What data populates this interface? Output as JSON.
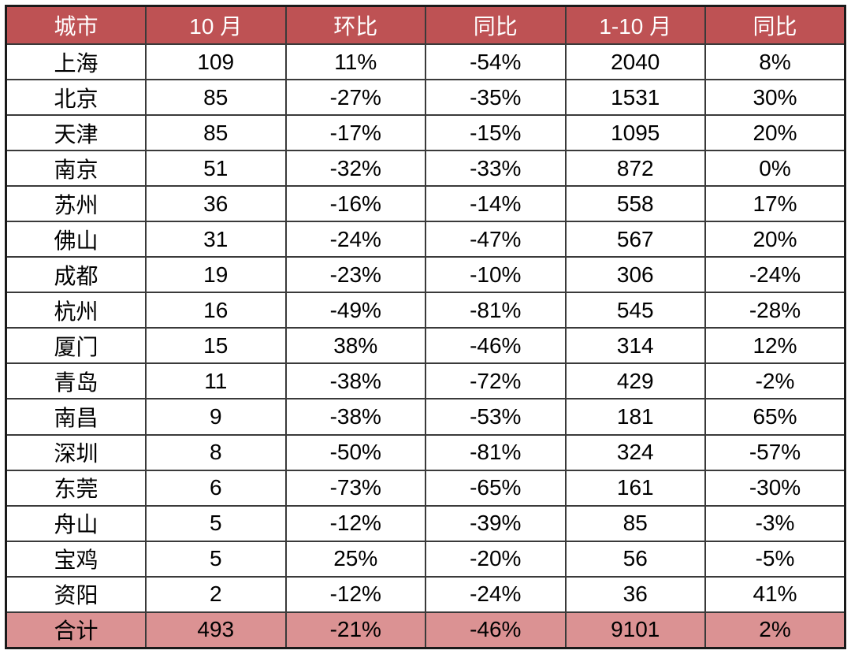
{
  "table": {
    "columns": [
      "城市",
      "10 月",
      "环比",
      "同比",
      "1-10 月",
      "同比"
    ],
    "rows": [
      [
        "上海",
        "109",
        "11%",
        "-54%",
        "2040",
        "8%"
      ],
      [
        "北京",
        "85",
        "-27%",
        "-35%",
        "1531",
        "30%"
      ],
      [
        "天津",
        "85",
        "-17%",
        "-15%",
        "1095",
        "20%"
      ],
      [
        "南京",
        "51",
        "-32%",
        "-33%",
        "872",
        "0%"
      ],
      [
        "苏州",
        "36",
        "-16%",
        "-14%",
        "558",
        "17%"
      ],
      [
        "佛山",
        "31",
        "-24%",
        "-47%",
        "567",
        "20%"
      ],
      [
        "成都",
        "19",
        "-23%",
        "-10%",
        "306",
        "-24%"
      ],
      [
        "杭州",
        "16",
        "-49%",
        "-81%",
        "545",
        "-28%"
      ],
      [
        "厦门",
        "15",
        "38%",
        "-46%",
        "314",
        "12%"
      ],
      [
        "青岛",
        "11",
        "-38%",
        "-72%",
        "429",
        "-2%"
      ],
      [
        "南昌",
        "9",
        "-38%",
        "-53%",
        "181",
        "65%"
      ],
      [
        "深圳",
        "8",
        "-50%",
        "-81%",
        "324",
        "-57%"
      ],
      [
        "东莞",
        "6",
        "-73%",
        "-65%",
        "161",
        "-30%"
      ],
      [
        "舟山",
        "5",
        "-12%",
        "-39%",
        "85",
        "-3%"
      ],
      [
        "宝鸡",
        "5",
        "25%",
        "-20%",
        "56",
        "-5%"
      ],
      [
        "资阳",
        "2",
        "-12%",
        "-24%",
        "36",
        "41%"
      ]
    ],
    "total_row": [
      "合计",
      "493",
      "-21%",
      "-46%",
      "9101",
      "2%"
    ],
    "colors": {
      "header_bg": "#be5254",
      "header_text": "#ffffff",
      "total_bg": "#db9293",
      "body_bg": "#ffffff",
      "body_text": "#000000",
      "border": "#3a3a3a"
    }
  },
  "chart_data": {
    "type": "table",
    "title": "",
    "columns": [
      "城市",
      "10 月",
      "环比",
      "同比",
      "1-10 月",
      "同比"
    ],
    "rows": [
      {
        "city": "上海",
        "oct": 109,
        "mom": "11%",
        "yoy": "-54%",
        "jan_oct": 2040,
        "jan_oct_yoy": "8%"
      },
      {
        "city": "北京",
        "oct": 85,
        "mom": "-27%",
        "yoy": "-35%",
        "jan_oct": 1531,
        "jan_oct_yoy": "30%"
      },
      {
        "city": "天津",
        "oct": 85,
        "mom": "-17%",
        "yoy": "-15%",
        "jan_oct": 1095,
        "jan_oct_yoy": "20%"
      },
      {
        "city": "南京",
        "oct": 51,
        "mom": "-32%",
        "yoy": "-33%",
        "jan_oct": 872,
        "jan_oct_yoy": "0%"
      },
      {
        "city": "苏州",
        "oct": 36,
        "mom": "-16%",
        "yoy": "-14%",
        "jan_oct": 558,
        "jan_oct_yoy": "17%"
      },
      {
        "city": "佛山",
        "oct": 31,
        "mom": "-24%",
        "yoy": "-47%",
        "jan_oct": 567,
        "jan_oct_yoy": "20%"
      },
      {
        "city": "成都",
        "oct": 19,
        "mom": "-23%",
        "yoy": "-10%",
        "jan_oct": 306,
        "jan_oct_yoy": "-24%"
      },
      {
        "city": "杭州",
        "oct": 16,
        "mom": "-49%",
        "yoy": "-81%",
        "jan_oct": 545,
        "jan_oct_yoy": "-28%"
      },
      {
        "city": "厦门",
        "oct": 15,
        "mom": "38%",
        "yoy": "-46%",
        "jan_oct": 314,
        "jan_oct_yoy": "12%"
      },
      {
        "city": "青岛",
        "oct": 11,
        "mom": "-38%",
        "yoy": "-72%",
        "jan_oct": 429,
        "jan_oct_yoy": "-2%"
      },
      {
        "city": "南昌",
        "oct": 9,
        "mom": "-38%",
        "yoy": "-53%",
        "jan_oct": 181,
        "jan_oct_yoy": "65%"
      },
      {
        "city": "深圳",
        "oct": 8,
        "mom": "-50%",
        "yoy": "-81%",
        "jan_oct": 324,
        "jan_oct_yoy": "-57%"
      },
      {
        "city": "东莞",
        "oct": 6,
        "mom": "-73%",
        "yoy": "-65%",
        "jan_oct": 161,
        "jan_oct_yoy": "-30%"
      },
      {
        "city": "舟山",
        "oct": 5,
        "mom": "-12%",
        "yoy": "-39%",
        "jan_oct": 85,
        "jan_oct_yoy": "-3%"
      },
      {
        "city": "宝鸡",
        "oct": 5,
        "mom": "25%",
        "yoy": "-20%",
        "jan_oct": 56,
        "jan_oct_yoy": "-5%"
      },
      {
        "city": "资阳",
        "oct": 2,
        "mom": "-12%",
        "yoy": "-24%",
        "jan_oct": 36,
        "jan_oct_yoy": "41%"
      }
    ],
    "total": {
      "city": "合计",
      "oct": 493,
      "mom": "-21%",
      "yoy": "-46%",
      "jan_oct": 9101,
      "jan_oct_yoy": "2%"
    }
  }
}
